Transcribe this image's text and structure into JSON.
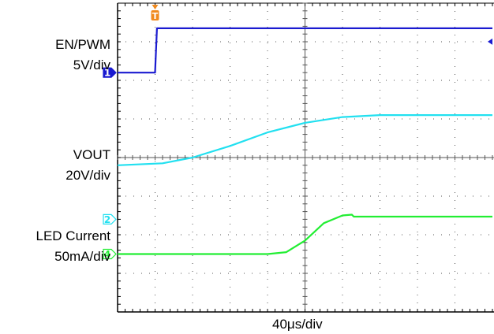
{
  "chart_data": {
    "type": "line",
    "labels": {
      "ch1_name": "EN/PWM",
      "ch1_scale": "5V/div",
      "ch2_name": "VOUT",
      "ch2_scale": "20V/div",
      "ch4_name": "LED Current",
      "ch4_scale": "50mA/div",
      "timebase": "40μs/div"
    },
    "grid": {
      "h_divs": 10,
      "v_divs": 8,
      "on": true
    },
    "markers": {
      "trigger": "T",
      "ch1": "1",
      "ch2": "2",
      "ch4": "4",
      "trigger_level_side": "right"
    },
    "colors": {
      "ch1": "#1a1ad0",
      "ch2": "#22e0f0",
      "ch4": "#22ee33",
      "trigger": "#f08a1e",
      "grid": "#555555"
    },
    "x_unit": "div",
    "y_unit": "div",
    "series": [
      {
        "name": "EN/PWM",
        "color": "#1a1ad0",
        "x": [
          0,
          1.0,
          1.05,
          10
        ],
        "y": [
          6.2,
          6.2,
          7.35,
          7.35
        ]
      },
      {
        "name": "VOUT",
        "color": "#22e0f0",
        "x": [
          0,
          1.2,
          2.0,
          3.0,
          4.0,
          5.0,
          6.0,
          7.0,
          8.0,
          10
        ],
        "y": [
          3.8,
          3.85,
          4.0,
          4.3,
          4.65,
          4.9,
          5.05,
          5.1,
          5.1,
          5.1
        ]
      },
      {
        "name": "LED Current",
        "color": "#22ee33",
        "x": [
          0,
          4.0,
          4.5,
          5.0,
          5.5,
          6.0,
          6.25,
          6.3,
          10
        ],
        "y": [
          1.5,
          1.5,
          1.55,
          1.85,
          2.3,
          2.5,
          2.52,
          2.47,
          2.47
        ]
      }
    ]
  }
}
